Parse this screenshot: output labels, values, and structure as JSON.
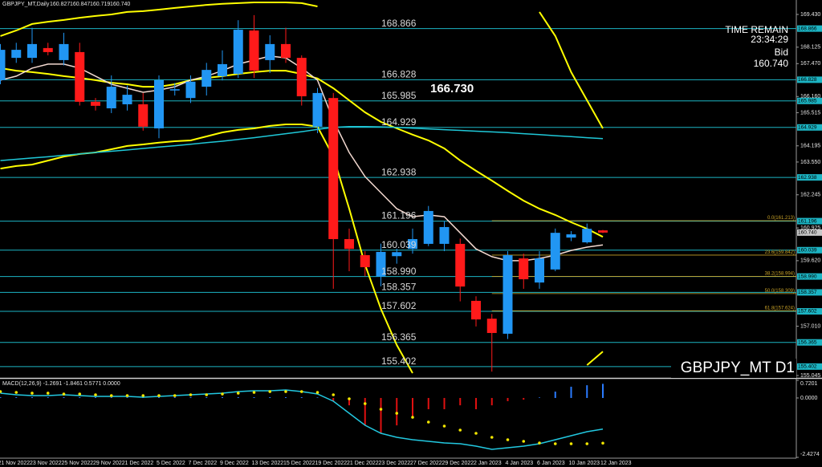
{
  "header": {
    "symbol": "GBPJPY_MT,Daily",
    "ohlc": [
      160.827,
      160.847,
      160.719,
      {
        "value": 160.74,
        "label": "160.740"
      }
    ]
  },
  "chart_data": [
    {
      "type": "candlestick",
      "categories": [
        "21 Nov 2022",
        null,
        "23 Nov 2022",
        null,
        "25 Nov 2022",
        null,
        "29 Nov 2022",
        null,
        "1 Dec 2022",
        null,
        "5 Dec 2022",
        null,
        "7 Dec 2022",
        null,
        "9 Dec 2022",
        null,
        "13 Dec 2022",
        null,
        "15 Dec 2022",
        null,
        "19 Dec 2022",
        null,
        "21 Dec 2022",
        null,
        "23 Dec 2022",
        null,
        "27 Dec 2022",
        null,
        "29 Dec 2022",
        null,
        "2 Jan 2023",
        null,
        "4 Jan 2023",
        null,
        "6 Jan 2023",
        null,
        "10 Jan 2023",
        null,
        "12 Jan 2023"
      ],
      "open": [
        166.81,
        167.7,
        167.7,
        168.09,
        167.61,
        167.93,
        165.95,
        165.69,
        165.85,
        165.85,
        164.89,
        166.4,
        166.1,
        166.55,
        166.97,
        167.06,
        168.79,
        167.61,
        168.25,
        167.7,
        164.96,
        166.1,
        160.48,
        159.84,
        158.99,
        159.8,
        160.09,
        160.29,
        160.29,
        160.29,
        158.02,
        157.31,
        156.71,
        159.71,
        158.75,
        159.27,
        160.54,
        160.35,
        160.827
      ],
      "high": [
        168.25,
        168.3,
        168.9,
        168.3,
        168.7,
        168.3,
        166.1,
        167.0,
        166.6,
        166.3,
        167.0,
        166.7,
        167.0,
        167.5,
        168.0,
        169.2,
        169.4,
        168.6,
        168.9,
        167.8,
        166.5,
        166.3,
        160.9,
        160.0,
        160.3,
        160.1,
        160.9,
        161.8,
        161.2,
        160.5,
        158.2,
        157.5,
        160.0,
        159.9,
        160.0,
        160.9,
        160.8,
        161.1,
        160.847
      ],
      "low": [
        166.65,
        167.5,
        167.5,
        167.8,
        167.4,
        165.8,
        165.6,
        165.5,
        165.6,
        164.8,
        164.5,
        166.2,
        165.9,
        166.2,
        166.8,
        166.9,
        166.9,
        167.1,
        167.5,
        165.8,
        164.7,
        158.5,
        159.2,
        159.0,
        158.6,
        159.5,
        159.9,
        160.2,
        160.0,
        158.0,
        157.0,
        155.2,
        156.5,
        158.5,
        158.5,
        159.2,
        160.4,
        160.3,
        160.719
      ],
      "close": [
        168.02,
        168.02,
        168.25,
        167.93,
        168.25,
        165.95,
        165.79,
        166.55,
        166.23,
        164.96,
        166.81,
        166.45,
        166.75,
        167.22,
        167.45,
        168.82,
        167.19,
        168.25,
        167.7,
        166.17,
        166.3,
        160.48,
        160.09,
        159.36,
        159.97,
        159.96,
        160.48,
        161.6,
        160.96,
        158.59,
        157.28,
        156.74,
        159.84,
        158.88,
        159.71,
        160.73,
        160.67,
        160.89,
        160.74
      ],
      "up_color": "#2196f3",
      "down_color": "#ff1a1a",
      "ylim": [
        154.949,
        170.005
      ],
      "yticks": [
        {
          "value": 169.43,
          "label": "169.430"
        },
        168.125,
        {
          "value": 167.47,
          "label": "167.470"
        },
        {
          "value": 166.16,
          "label": "166.160"
        },
        165.515,
        164.195,
        {
          "value": 163.55,
          "label": "163.550"
        },
        162.245,
        160.925,
        {
          "value": 159.62,
          "label": "159.620"
        },
        {
          "value": 157.01,
          "label": "157.010"
        },
        155.045
      ],
      "overlays": [
        {
          "color": "#ffff00",
          "width": 2,
          "values": [
            168.57,
            168.79,
            169.05,
            169.14,
            169.21,
            169.3,
            169.37,
            169.43,
            169.53,
            169.56,
            169.62,
            169.69,
            169.75,
            169.81,
            169.85,
            169.88,
            169.91,
            169.91,
            169.91,
            169.88,
            169.75,
            null,
            null,
            null,
            null,
            null,
            null,
            null,
            null,
            null,
            null,
            null,
            null,
            null,
            169.53,
            168.57,
            167.13,
            166.01,
            164.89
          ]
        },
        {
          "color": "#ffff00",
          "width": 2,
          "values": [
            167.29,
            167.19,
            167.13,
            167.06,
            166.97,
            166.9,
            166.81,
            166.71,
            166.65,
            166.55,
            166.55,
            166.65,
            166.81,
            166.9,
            166.97,
            167.06,
            167.13,
            167.19,
            167.19,
            167.06,
            166.88,
            166.49,
            166.01,
            165.53,
            165.15,
            164.89,
            164.64,
            164.41,
            164.09,
            163.61,
            163.2,
            162.81,
            162.4,
            162.01,
            161.69,
            161.44,
            161.15,
            160.89,
            160.57
          ]
        },
        {
          "color": "#ffff00",
          "width": 2,
          "values": [
            163.29,
            163.39,
            163.45,
            163.61,
            163.77,
            163.87,
            163.93,
            164.06,
            164.19,
            164.25,
            164.32,
            164.38,
            164.41,
            164.57,
            164.73,
            164.83,
            164.89,
            164.99,
            165.05,
            165.05,
            164.96,
            163.77,
            161.69,
            159.46,
            157.7,
            156.26,
            155.14,
            null,
            null,
            null,
            null,
            null,
            null,
            null,
            null,
            null,
            null,
            155.46,
            156.0
          ]
        },
        {
          "color": "#f3d9d0",
          "width": 1.5,
          "values": [
            166.81,
            166.97,
            167.29,
            167.45,
            167.45,
            167.29,
            166.97,
            166.65,
            166.49,
            166.33,
            166.42,
            166.55,
            166.81,
            166.97,
            167.19,
            167.45,
            167.61,
            167.77,
            167.7,
            167.29,
            166.81,
            165.21,
            163.93,
            162.97,
            162.33,
            161.69,
            161.37,
            161.44,
            161.37,
            160.73,
            160.09,
            159.78,
            159.62,
            159.62,
            159.71,
            159.84,
            160.03,
            160.16,
            160.25
          ]
        },
        {
          "color": "#1fc8d8",
          "width": 1.5,
          "values": [
            163.61,
            163.66,
            163.71,
            163.76,
            163.82,
            163.87,
            163.93,
            163.98,
            164.03,
            164.09,
            164.15,
            164.2,
            164.26,
            164.32,
            164.38,
            164.45,
            164.52,
            164.6,
            164.68,
            164.76,
            164.85,
            164.93,
            164.96,
            164.96,
            164.95,
            164.93,
            164.9,
            164.87,
            164.84,
            164.81,
            164.78,
            164.75,
            164.72,
            164.68,
            164.64,
            164.6,
            164.56,
            164.52,
            164.48
          ]
        }
      ],
      "levels": [
        168.866,
        166.828,
        165.985,
        164.929,
        162.938,
        161.196,
        160.039,
        {
          "value": 158.99,
          "label": "158.990"
        },
        158.357,
        157.602,
        156.365,
        155.402
      ],
      "level_color": "#1cb5c4",
      "fib_levels": [
        {
          "value": 161.213,
          "label": "0.0(161.213)"
        },
        {
          "value": 159.842,
          "label": "23.6(159.842)"
        },
        {
          "value": 158.994,
          "label": "38.2(158.994)"
        },
        {
          "value": 158.309,
          "label": "50.0(158.309)"
        },
        {
          "value": 157.624,
          "label": "61.8(157.624)"
        }
      ],
      "fib_color": "#c9a227",
      "price_label": {
        "value": 166.73,
        "label": "166.730"
      },
      "timer_label": "TIME REMAIN",
      "timer": "23:34:29",
      "bid_label": "Bid",
      "bid": {
        "value": 160.74,
        "label": "160.740"
      },
      "watermark": "GBPJPY_MT D1"
    },
    {
      "type": "macd",
      "title": "MACD(12,26,9) -1.2691 -1.8461 0.5771 0.0000",
      "ylim": [
        -2.4274,
        0.7201
      ],
      "yticks": [
        {
          "value": 0.7201,
          "label": "0.7201"
        },
        {
          "value": 0,
          "label": "0.0000"
        },
        {
          "value": -2.4274,
          "label": "-2.4274"
        }
      ],
      "histogram": [
        0.03,
        0.03,
        0.03,
        0.03,
        0.03,
        0.03,
        0.03,
        0.03,
        0.03,
        0.03,
        0.03,
        0.03,
        0.03,
        0.03,
        0.03,
        0.03,
        0.03,
        0.03,
        0.03,
        0.03,
        0.02,
        -0.13,
        -0.3,
        -1.12,
        -1.44,
        -1.12,
        -0.79,
        -0.46,
        -0.46,
        -0.3,
        -0.46,
        -0.3,
        -0.13,
        -0.07,
        0.02,
        0.26,
        0.46,
        0.52,
        0.5771
      ],
      "up_color": "#2a7bff",
      "down_color": "#e01010",
      "main": {
        "color": "#22c8e0",
        "values": [
          0.196,
          0.13,
          0.097,
          0.097,
          0.13,
          0.097,
          0.064,
          0.064,
          0.064,
          0.032,
          0.064,
          0.097,
          0.13,
          0.163,
          0.196,
          0.261,
          0.294,
          0.294,
          0.327,
          0.261,
          0.163,
          -0.132,
          -0.624,
          -1.116,
          -1.444,
          -1.608,
          -1.706,
          -1.772,
          -1.838,
          -1.87,
          -1.968,
          -2.1,
          -2.034,
          -1.968,
          -1.87,
          -1.706,
          -1.542,
          -1.378,
          -1.2691
        ]
      },
      "signal": {
        "color": "#f2e600",
        "values": [
          0.261,
          0.228,
          0.196,
          0.196,
          0.163,
          0.163,
          0.13,
          0.097,
          0.097,
          0.097,
          0.097,
          0.097,
          0.13,
          0.13,
          0.163,
          0.196,
          0.228,
          0.261,
          0.261,
          0.261,
          0.228,
          0.13,
          -0.034,
          -0.231,
          -0.46,
          -0.624,
          -0.788,
          -0.985,
          -1.149,
          -1.313,
          -1.444,
          -1.608,
          -1.706,
          -1.772,
          -1.838,
          -1.87,
          -1.87,
          -1.87,
          -1.8461
        ]
      }
    }
  ]
}
